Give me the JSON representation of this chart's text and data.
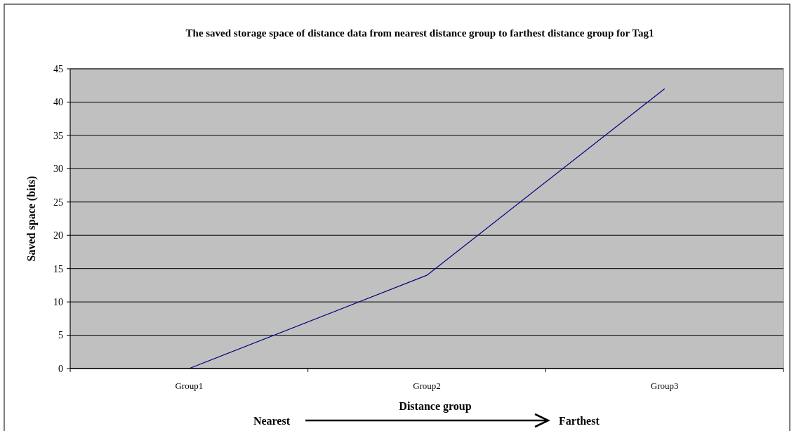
{
  "chart_data": {
    "type": "line",
    "title": "The saved storage space of distance data from nearest distance group to farthest distance group for Tag1",
    "xlabel": "Distance group",
    "ylabel": "Saved space (bits)",
    "categories": [
      "Group1",
      "Group2",
      "Group3"
    ],
    "series": [
      {
        "color": "#000080",
        "values": [
          0,
          14,
          42
        ]
      }
    ],
    "ylim": [
      0,
      45
    ],
    "yticks": [
      0,
      5,
      10,
      15,
      20,
      25,
      30,
      35,
      40,
      45
    ],
    "grid": "y",
    "annotations": [
      "Nearest",
      "Farthest"
    ]
  }
}
